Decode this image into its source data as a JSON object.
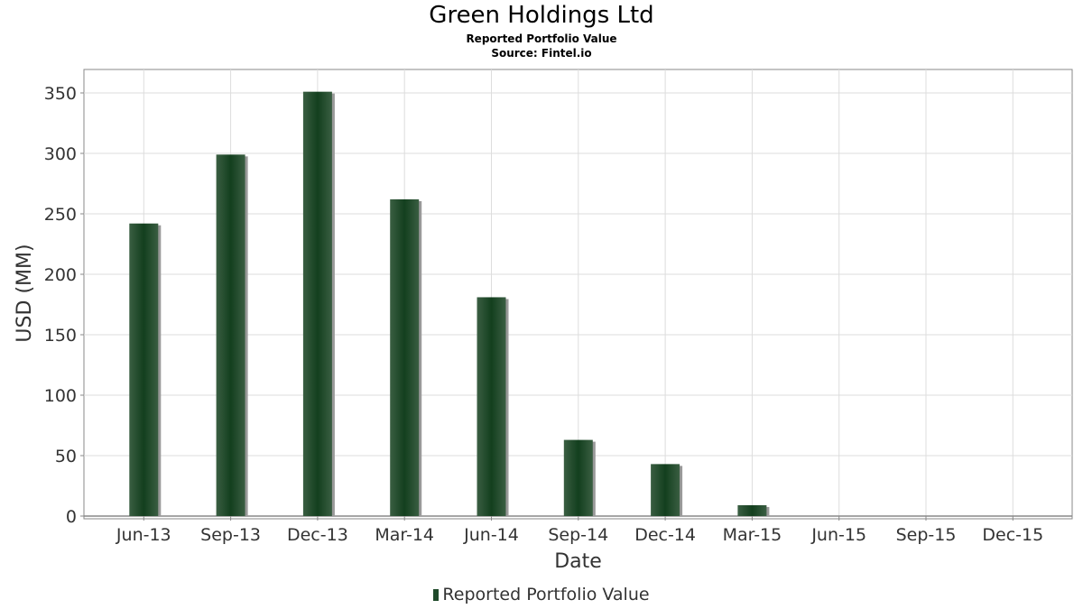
{
  "header": {
    "title": "Green Holdings Ltd",
    "subtitle": "Reported Portfolio Value",
    "source": "Source: Fintel.io"
  },
  "chart_data": {
    "type": "bar",
    "title": "Green Holdings Ltd",
    "subtitle": "Reported Portfolio Value",
    "xlabel": "Date",
    "ylabel": "USD (MM)",
    "ylim": [
      0,
      370
    ],
    "yticks": [
      0,
      50,
      100,
      150,
      200,
      250,
      300,
      350
    ],
    "grid": true,
    "legend_position": "bottom",
    "categories": [
      "Jun-13",
      "Sep-13",
      "Dec-13",
      "Mar-14",
      "Jun-14",
      "Sep-14",
      "Dec-14",
      "Mar-15",
      "Jun-15",
      "Sep-15",
      "Dec-15"
    ],
    "series": [
      {
        "name": "Reported Portfolio Value",
        "color": "#1f4a2a",
        "values": [
          242,
          299,
          351,
          262,
          181,
          63,
          43,
          9,
          0,
          0,
          0
        ]
      }
    ]
  }
}
